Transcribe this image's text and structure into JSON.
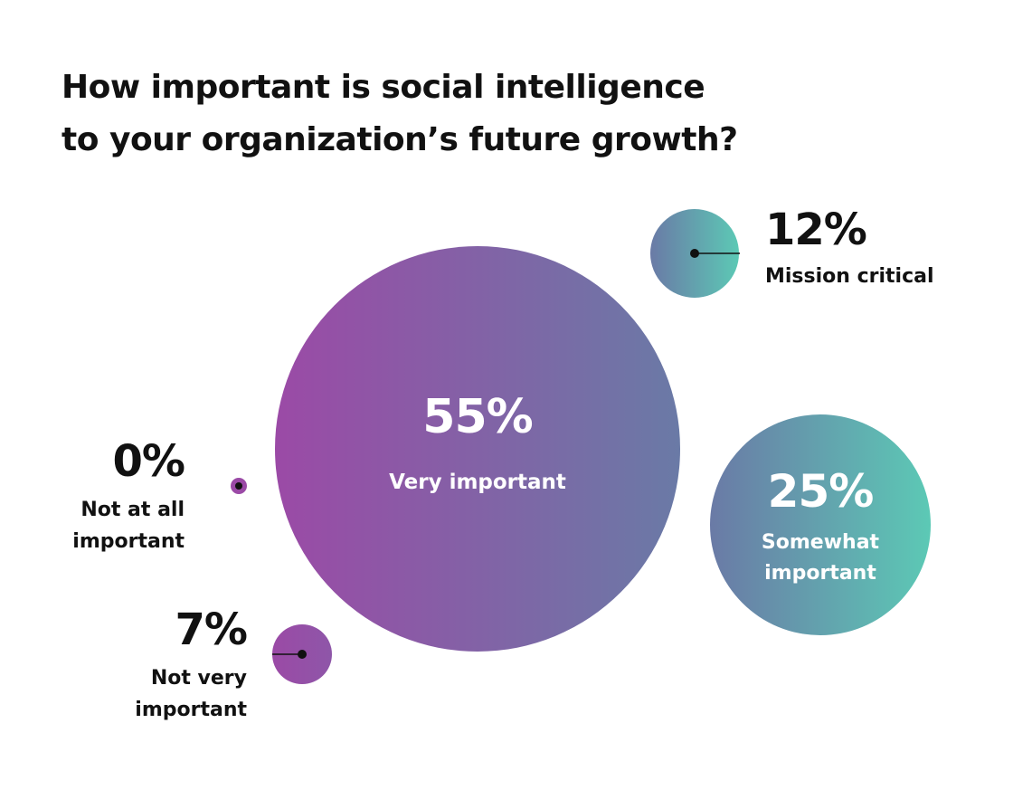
{
  "title_lines": [
    "How important is social intelligence",
    "to your organization’s future growth?"
  ],
  "colors": {
    "purple": "#9b4aa6",
    "slate": "#6a7aa6",
    "teal": "#5cc9b5",
    "text_dark": "#111111",
    "text_light": "#ffffff"
  },
  "chart_data": {
    "type": "bubble",
    "title": "How important is social intelligence to your organization’s future growth?",
    "categories": [
      "Very important",
      "Somewhat important",
      "Mission critical",
      "Not very important",
      "Not at all important"
    ],
    "values": [
      55,
      25,
      12,
      7,
      0
    ],
    "value_labels": [
      "55%",
      "25%",
      "12%",
      "7%",
      "0%"
    ],
    "label_lines": [
      [
        "Very important"
      ],
      [
        "Somewhat",
        "important"
      ],
      [
        "Mission critical"
      ],
      [
        "Not very",
        "important"
      ],
      [
        "Not at all",
        "important"
      ]
    ]
  }
}
